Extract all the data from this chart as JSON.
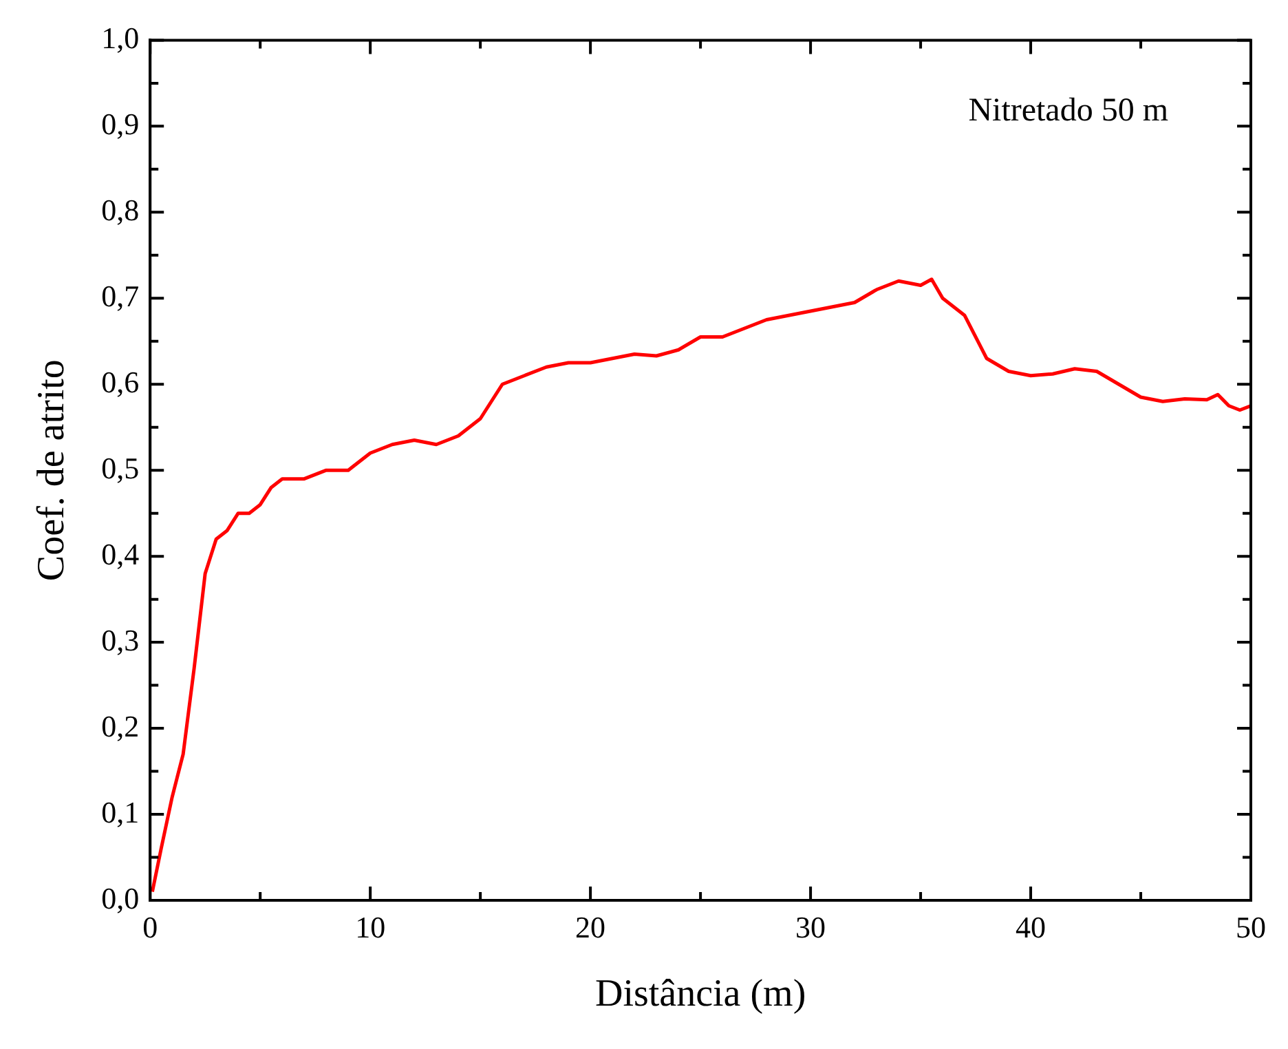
{
  "chart_data": {
    "type": "line",
    "xlabel": "Distância (m)",
    "ylabel": "Coef. de atrito",
    "annotations": [
      "Nitretado 50 m"
    ],
    "x": [
      0.1,
      0.5,
      1.0,
      1.5,
      2.0,
      2.5,
      3.0,
      3.5,
      4.0,
      4.5,
      5.0,
      5.5,
      6.0,
      7.0,
      8.0,
      9.0,
      10,
      11,
      12,
      13,
      14,
      15,
      16,
      17,
      18,
      19,
      20,
      21,
      22,
      23,
      24,
      25,
      26,
      27,
      28,
      29,
      30,
      31,
      32,
      33,
      34,
      35,
      35.5,
      36,
      37,
      38,
      39,
      40,
      41,
      42,
      43,
      44,
      45,
      46,
      47,
      48,
      48.5,
      49,
      49.5,
      50
    ],
    "series": [
      {
        "color": "#ff0000",
        "values": [
          0.01,
          0.06,
          0.12,
          0.17,
          0.27,
          0.38,
          0.42,
          0.43,
          0.45,
          0.45,
          0.46,
          0.48,
          0.49,
          0.49,
          0.5,
          0.5,
          0.52,
          0.53,
          0.535,
          0.53,
          0.54,
          0.56,
          0.6,
          0.61,
          0.62,
          0.625,
          0.625,
          0.63,
          0.635,
          0.633,
          0.64,
          0.655,
          0.655,
          0.665,
          0.675,
          0.68,
          0.685,
          0.69,
          0.695,
          0.71,
          0.72,
          0.715,
          0.722,
          0.7,
          0.68,
          0.63,
          0.615,
          0.61,
          0.612,
          0.618,
          0.615,
          0.6,
          0.585,
          0.58,
          0.583,
          0.582,
          0.588,
          0.575,
          0.57,
          0.575
        ]
      }
    ],
    "xlim": [
      0,
      50
    ],
    "xticks": [
      0,
      10,
      20,
      30,
      40,
      50
    ],
    "ylim": [
      0,
      1
    ],
    "yticks": [
      {
        "value": 0,
        "label": "0,0"
      },
      {
        "value": 0.1,
        "label": "0,1"
      },
      {
        "value": 0.2,
        "label": "0,2"
      },
      {
        "value": 0.3,
        "label": "0,3"
      },
      {
        "value": 0.4,
        "label": "0,4"
      },
      {
        "value": 0.5,
        "label": "0,5"
      },
      {
        "value": 0.6,
        "label": "0,6"
      },
      {
        "value": 0.7,
        "label": "0,7"
      },
      {
        "value": 0.8,
        "label": "0,8"
      },
      {
        "value": 0.9,
        "label": "0,9"
      },
      {
        "value": 1,
        "label": "1,0"
      }
    ],
    "grid": false,
    "legend": false,
    "marker": "none",
    "line_style": "solid"
  }
}
